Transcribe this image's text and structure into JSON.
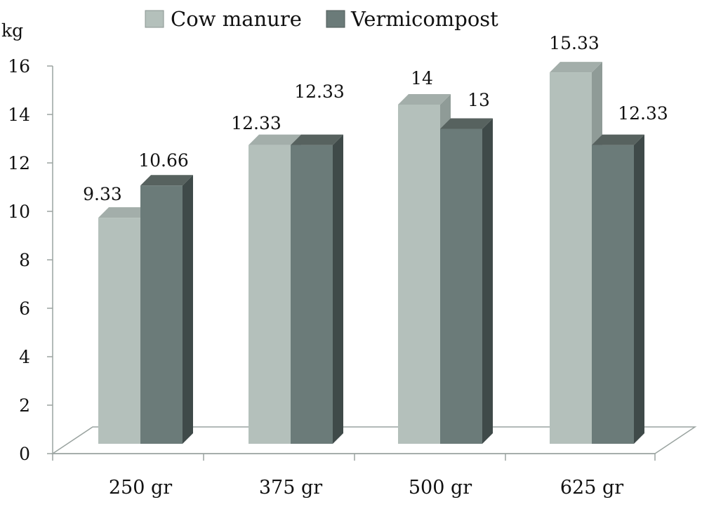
{
  "chart_data": {
    "type": "bar",
    "ylabel": "kg",
    "xlabel": "",
    "ylim": [
      0,
      16
    ],
    "yticks": [
      0,
      2,
      4,
      6,
      8,
      10,
      12,
      14,
      16
    ],
    "categories": [
      "250 gr",
      "375 gr",
      "500 gr",
      "625 gr"
    ],
    "series": [
      {
        "name": "Cow manure",
        "values": [
          9.33,
          12.33,
          14,
          15.33
        ],
        "color": "#b4c0bb"
      },
      {
        "name": "Vermicompost",
        "values": [
          10.66,
          12.33,
          13,
          12.33
        ],
        "color": "#6b7b79"
      }
    ],
    "value_labels": [
      [
        "9.33",
        "12.33",
        "14",
        "15.33"
      ],
      [
        "10.66",
        "12.33",
        "13",
        "12.33"
      ]
    ],
    "grid": false,
    "legend_position": "top",
    "style": "3d-clustered-column"
  }
}
